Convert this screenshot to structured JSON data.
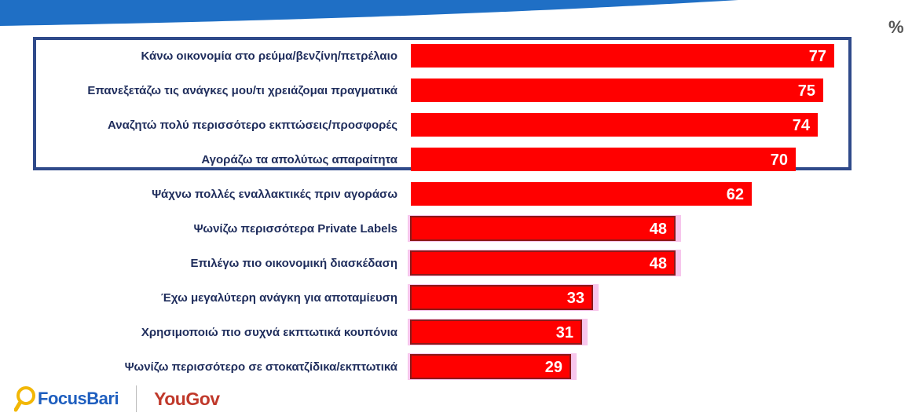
{
  "colors": {
    "bar": "#ff0000",
    "bar_outline_lower": "#8b1a1a",
    "bar_halo_lower": "#f7c6ec",
    "label_text": "#1f2d5c",
    "highlight_border": "#2f4a8a",
    "top_band": "#1f6fc5"
  },
  "unit_label": "%",
  "chart_data": {
    "type": "bar",
    "orientation": "horizontal",
    "categories": [
      "Κάνω οικονομία στο ρεύμα/βενζίνη/πετρέλαιο",
      "Επανεξετάζω τις ανάγκες μου/τι χρειάζομαι πραγματικά",
      "Αναζητώ πολύ περισσότερο εκπτώσεις/προσφορές",
      "Αγοράζω τα απολύτως απαραίτητα",
      "Ψάχνω πολλές εναλλακτικές πριν αγοράσω",
      "Ψωνίζω περισσότερα Private Labels",
      "Επιλέγω πιο οικονομική διασκέδαση",
      "Έχω μεγαλύτερη ανάγκη για αποταμίευση",
      "Χρησιμοποιώ πιο συχνά εκπτωτικά κουπόνια",
      "Ψωνίζω περισσότερο σε στοκατζίδικα/εκπτωτικά"
    ],
    "values": [
      77,
      75,
      74,
      70,
      62,
      48,
      48,
      33,
      31,
      29
    ],
    "data_labels": [
      "77",
      "75",
      "74",
      "70",
      "62",
      "48",
      "48",
      "33",
      "31",
      "29"
    ],
    "xlim": [
      0,
      77
    ],
    "highlighted_categories": 4,
    "grid": false,
    "legend": "none"
  },
  "logos": {
    "focus": {
      "text": "FocusBari",
      "icon": "magnifier-icon"
    },
    "yougov": {
      "text": "YouGov"
    }
  }
}
